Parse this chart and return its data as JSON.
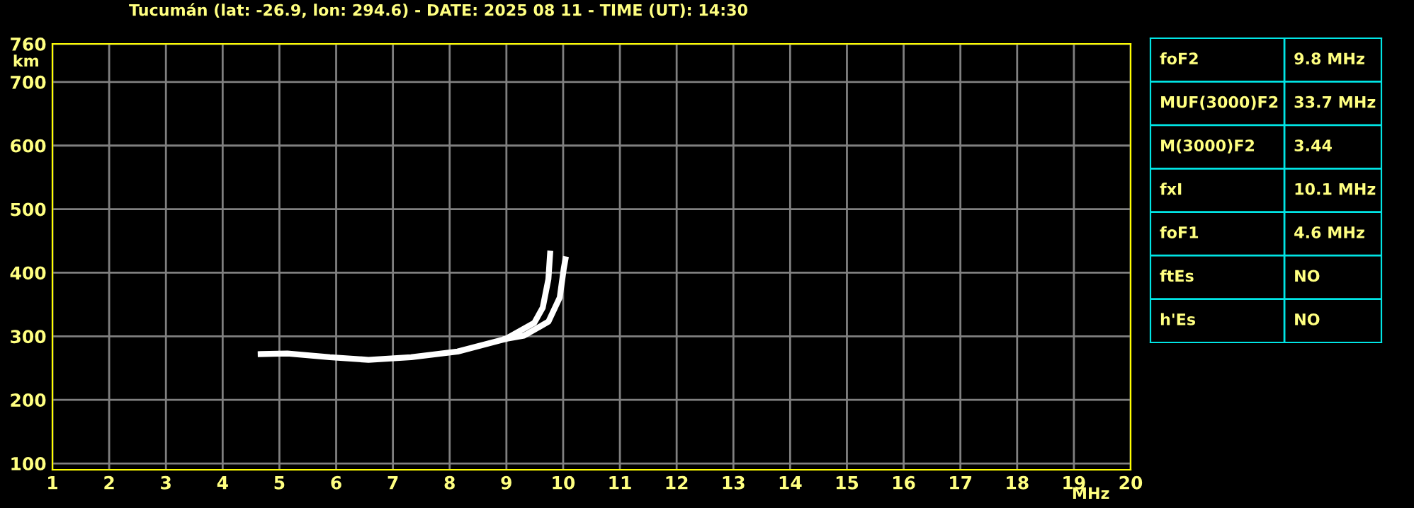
{
  "chart_data": [
    {
      "type": "line",
      "title": "Tucumán (lat: -26.9, lon: 294.6) - DATE: 2025 08 11 - TIME (UT): 14:30",
      "xlabel": "MHz",
      "ylabel": "km",
      "xlim": [
        1,
        20
      ],
      "ylim": [
        90,
        760
      ],
      "xticks": [
        1,
        2,
        3,
        4,
        5,
        6,
        7,
        8,
        9,
        10,
        11,
        12,
        13,
        14,
        15,
        16,
        17,
        18,
        19,
        20
      ],
      "yticks": [
        100,
        200,
        300,
        400,
        500,
        600,
        700,
        760
      ],
      "grid": true,
      "marker": "none",
      "line_style": "solid",
      "series": [
        {
          "color": "#ffffff",
          "x": [
            4.67,
            5.14,
            5.89,
            6.57,
            7.32,
            8.14,
            8.99,
            9.49,
            9.64,
            9.74,
            9.77
          ],
          "values": [
            272,
            273,
            267,
            263,
            267,
            276,
            296,
            321,
            345,
            390,
            430
          ]
        },
        {
          "color": "#ffffff",
          "x": [
            8.99,
            9.31,
            9.74,
            9.94,
            10.01,
            10.04
          ],
          "values": [
            296,
            301,
            323,
            361,
            406,
            421
          ]
        }
      ]
    },
    {
      "type": "other",
      "annotations": [
        "foF2",
        "9.8 MHz",
        "MUF(3000)F2",
        "33.7 MHz",
        "M(3000)F2",
        "3.44",
        "fxI",
        "10.1 MHz",
        "foF1",
        "4.6 MHz",
        "ftEs",
        "NO",
        "h'Es",
        "NO"
      ]
    }
  ]
}
